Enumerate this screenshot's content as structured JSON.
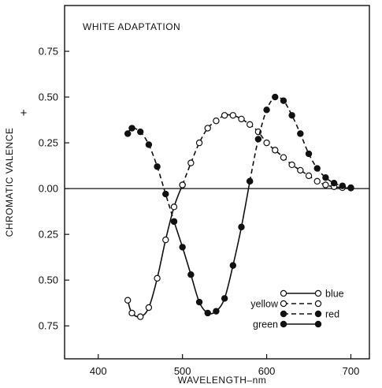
{
  "chart_data": {
    "type": "line",
    "title": "WHITE ADAPTATION",
    "xlabel": "WAVELENGTH–nm",
    "ylabel": "CHROMATIC VALENCE",
    "ylabel_marker": "+",
    "xlim": [
      360,
      722
    ],
    "ylim": [
      -0.93,
      1.0
    ],
    "x_ticks": [
      400,
      500,
      600,
      700
    ],
    "y_ticks": [
      {
        "value": 0.75,
        "label": "0.75"
      },
      {
        "value": 0.5,
        "label": "0.50"
      },
      {
        "value": 0.25,
        "label": "0.25"
      },
      {
        "value": 0.0,
        "label": "0.00"
      },
      {
        "value": -0.25,
        "label": "0.25"
      },
      {
        "value": -0.5,
        "label": "0.50"
      },
      {
        "value": -0.75,
        "label": "0.75"
      }
    ],
    "zero_line": true,
    "grid": false,
    "legend_position": "bottom-right",
    "series": [
      {
        "name": "blue",
        "style": "solid",
        "marker": "open",
        "points": [
          [
            435,
            -0.61
          ],
          [
            440,
            -0.68
          ],
          [
            450,
            -0.7
          ],
          [
            460,
            -0.65
          ],
          [
            470,
            -0.49
          ],
          [
            480,
            -0.28
          ],
          [
            490,
            -0.1
          ],
          [
            500,
            0.02
          ]
        ]
      },
      {
        "name": "yellow",
        "style": "dashed",
        "marker": "open",
        "points": [
          [
            500,
            0.02
          ],
          [
            510,
            0.14
          ],
          [
            520,
            0.25
          ],
          [
            530,
            0.33
          ],
          [
            540,
            0.37
          ],
          [
            550,
            0.4
          ],
          [
            560,
            0.4
          ],
          [
            570,
            0.38
          ],
          [
            580,
            0.35
          ],
          [
            590,
            0.31
          ],
          [
            600,
            0.25
          ],
          [
            610,
            0.21
          ],
          [
            620,
            0.17
          ],
          [
            630,
            0.13
          ],
          [
            640,
            0.1
          ],
          [
            650,
            0.07
          ],
          [
            660,
            0.04
          ],
          [
            670,
            0.02
          ],
          [
            680,
            0.01
          ],
          [
            690,
            0.005
          ],
          [
            700,
            0.003
          ]
        ]
      },
      {
        "name": "red",
        "style": "dashed",
        "marker": "filled",
        "points": [
          [
            435,
            0.3
          ],
          [
            440,
            0.33
          ],
          [
            450,
            0.31
          ],
          [
            460,
            0.24
          ],
          [
            470,
            0.12
          ],
          [
            480,
            -0.03
          ],
          [
            490,
            -0.18
          ],
          [
            580,
            0.04
          ],
          [
            590,
            0.27
          ],
          [
            600,
            0.43
          ],
          [
            610,
            0.5
          ],
          [
            620,
            0.48
          ],
          [
            630,
            0.4
          ],
          [
            640,
            0.3
          ],
          [
            650,
            0.19
          ],
          [
            660,
            0.11
          ],
          [
            670,
            0.06
          ],
          [
            680,
            0.03
          ],
          [
            690,
            0.015
          ],
          [
            700,
            0.005
          ]
        ]
      },
      {
        "name": "green",
        "style": "solid",
        "marker": "filled",
        "points": [
          [
            490,
            -0.18
          ],
          [
            500,
            -0.32
          ],
          [
            510,
            -0.47
          ],
          [
            520,
            -0.62
          ],
          [
            530,
            -0.68
          ],
          [
            540,
            -0.67
          ],
          [
            550,
            -0.6
          ],
          [
            560,
            -0.42
          ],
          [
            570,
            -0.21
          ],
          [
            580,
            0.04
          ]
        ]
      }
    ],
    "legend": [
      {
        "label": "blue",
        "series": "blue",
        "label_side": "right"
      },
      {
        "label": "yellow",
        "series": "yellow",
        "label_side": "left"
      },
      {
        "label": "red",
        "series": "red",
        "label_side": "right"
      },
      {
        "label": "green",
        "series": "green",
        "label_side": "left"
      }
    ]
  }
}
